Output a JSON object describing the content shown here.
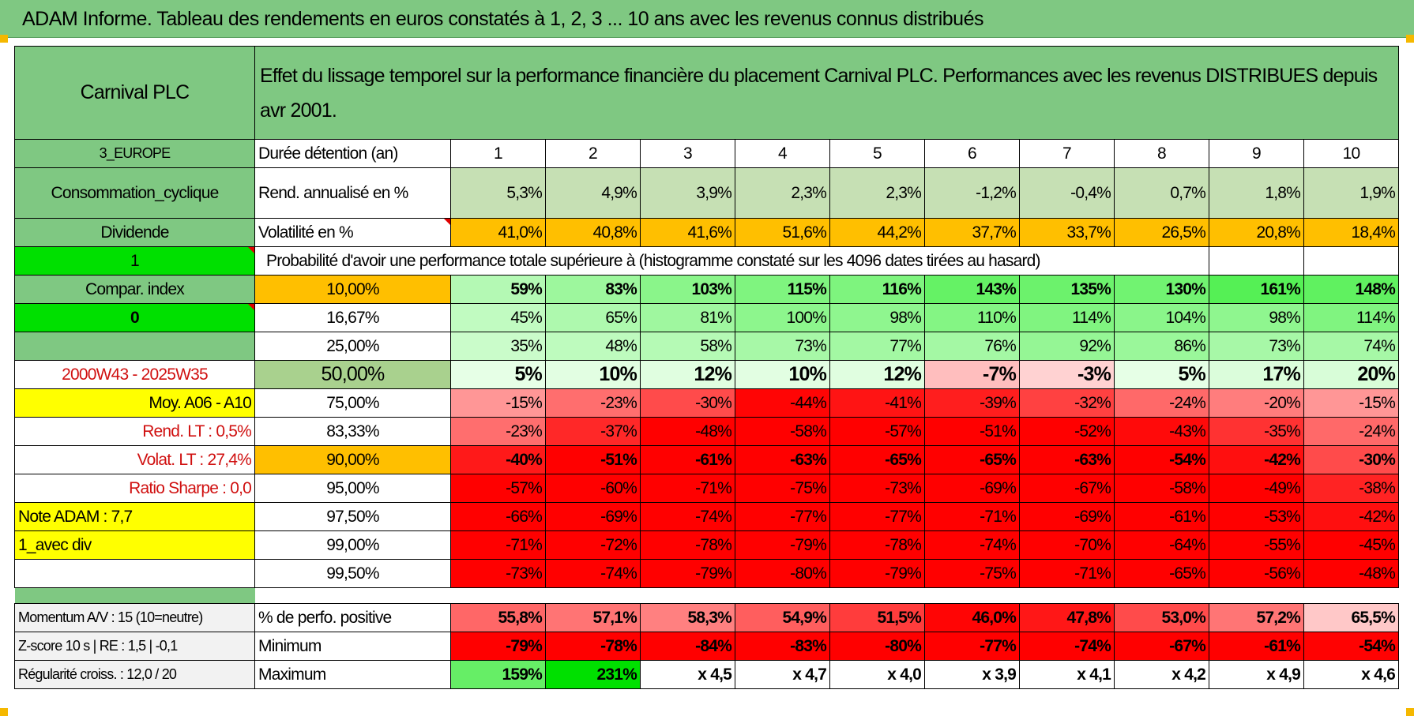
{
  "header": {
    "title": "ADAM Informe. Tableau des rendements en euros constatés à 1, 2, 3 ... 10 ans avec les revenus connus distribués"
  },
  "colors": {
    "green": "#7fc882",
    "bright_green": "#00e000",
    "yellow": "#ffff00",
    "orange": "#ffbf00",
    "red": "#ff0000"
  },
  "table": {
    "name": "Carnival PLC",
    "description": "Effet du lissage temporel sur la performance financière du placement Carnival PLC. Performances avec les revenus DISTRIBUES depuis avr 2001.",
    "region": "3_EUROPE",
    "sector": "Consommation_cyclique",
    "dividend_label": "Dividende",
    "flag_1": "1",
    "compar_index": "Compar. index",
    "flag_0": "0",
    "period": "2000W43 - 2025W35",
    "moy_label": "Moy. A06 - A10",
    "rend_lt": "Rend. LT :    0,5%",
    "volat_lt": "Volat. LT :    27,4%",
    "sharpe": "Ratio Sharpe :    0,0",
    "note_adam": "Note ADAM : 7,7",
    "avec_div": "1_avec div",
    "duration_label": "Durée détention (an)",
    "years": [
      "1",
      "2",
      "3",
      "4",
      "5",
      "6",
      "7",
      "8",
      "9",
      "10"
    ],
    "rend_label": "Rend. annualisé en %",
    "rend": [
      "5,3%",
      "4,9%",
      "3,9%",
      "2,3%",
      "2,3%",
      "-1,2%",
      "-0,4%",
      "0,7%",
      "1,8%",
      "1,9%"
    ],
    "vol_label": "Volatilité en %",
    "vol": [
      "41,0%",
      "40,8%",
      "41,6%",
      "51,6%",
      "44,2%",
      "37,7%",
      "33,7%",
      "26,5%",
      "20,8%",
      "18,4%"
    ],
    "prob_title": "Probabilité d'avoir une performance totale supérieure à (histogramme constaté sur les 4096 dates tirées au hasard)",
    "quantiles": [
      {
        "p": "10,00%",
        "v": [
          "59%",
          "83%",
          "103%",
          "115%",
          "116%",
          "143%",
          "135%",
          "130%",
          "161%",
          "148%"
        ]
      },
      {
        "p": "16,67%",
        "v": [
          "45%",
          "65%",
          "81%",
          "100%",
          "98%",
          "110%",
          "114%",
          "104%",
          "98%",
          "114%"
        ]
      },
      {
        "p": "25,00%",
        "v": [
          "35%",
          "48%",
          "58%",
          "73%",
          "77%",
          "76%",
          "92%",
          "86%",
          "73%",
          "74%"
        ]
      },
      {
        "p": "50,00%",
        "v": [
          "5%",
          "10%",
          "12%",
          "10%",
          "12%",
          "-7%",
          "-3%",
          "5%",
          "17%",
          "20%"
        ]
      },
      {
        "p": "75,00%",
        "v": [
          "-15%",
          "-23%",
          "-30%",
          "-44%",
          "-41%",
          "-39%",
          "-32%",
          "-24%",
          "-20%",
          "-15%"
        ]
      },
      {
        "p": "83,33%",
        "v": [
          "-23%",
          "-37%",
          "-48%",
          "-58%",
          "-57%",
          "-51%",
          "-52%",
          "-43%",
          "-35%",
          "-24%"
        ]
      },
      {
        "p": "90,00%",
        "v": [
          "-40%",
          "-51%",
          "-61%",
          "-63%",
          "-65%",
          "-65%",
          "-63%",
          "-54%",
          "-42%",
          "-30%"
        ]
      },
      {
        "p": "95,00%",
        "v": [
          "-57%",
          "-60%",
          "-71%",
          "-75%",
          "-73%",
          "-69%",
          "-67%",
          "-58%",
          "-49%",
          "-38%"
        ]
      },
      {
        "p": "97,50%",
        "v": [
          "-66%",
          "-69%",
          "-74%",
          "-77%",
          "-77%",
          "-71%",
          "-69%",
          "-61%",
          "-53%",
          "-42%"
        ]
      },
      {
        "p": "99,00%",
        "v": [
          "-71%",
          "-72%",
          "-78%",
          "-79%",
          "-78%",
          "-74%",
          "-70%",
          "-64%",
          "-55%",
          "-45%"
        ]
      },
      {
        "p": "99,50%",
        "v": [
          "-73%",
          "-74%",
          "-79%",
          "-80%",
          "-79%",
          "-75%",
          "-71%",
          "-65%",
          "-56%",
          "-48%"
        ]
      }
    ],
    "momentum": "Momentum A/V : 15 (10=neutre)",
    "zscore": "Z-score 10 s | RE : 1,5 | -0,1",
    "regularite": "Régularité croiss. : 12,0 / 20",
    "pos_label": "% de perfo. positive",
    "pos": [
      "55,8%",
      "57,1%",
      "58,3%",
      "54,9%",
      "51,5%",
      "46,0%",
      "47,8%",
      "53,0%",
      "57,2%",
      "65,5%"
    ],
    "min_label": "Minimum",
    "min": [
      "-79%",
      "-78%",
      "-84%",
      "-83%",
      "-80%",
      "-77%",
      "-74%",
      "-67%",
      "-61%",
      "-54%"
    ],
    "max_label": "Maximum",
    "max": [
      "159%",
      "231%",
      "x 4,5",
      "x 4,7",
      "x 4,0",
      "x 3,9",
      "x 4,1",
      "x 4,2",
      "x 4,9",
      "x 4,6"
    ]
  }
}
